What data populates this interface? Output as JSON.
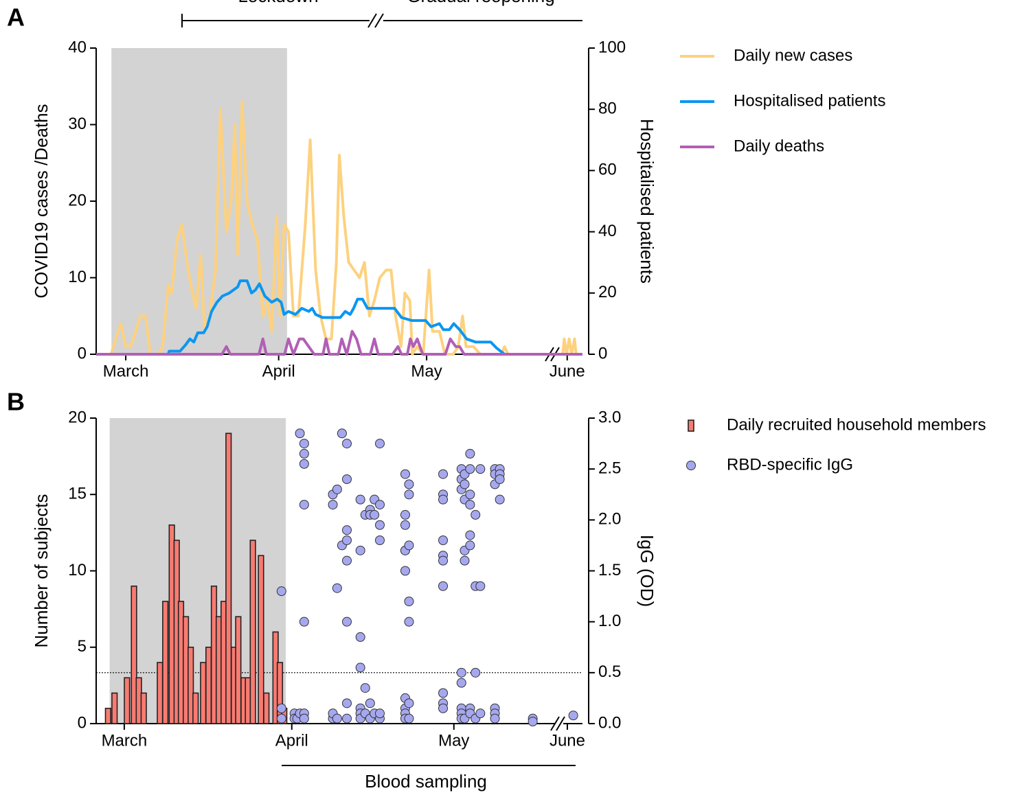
{
  "chart_data": [
    {
      "type": "line",
      "panel": "A",
      "annotations": [
        "Lockdown",
        "Gradual reopening"
      ],
      "y_label": "COVID19 cases /Deaths",
      "y2_label": "Hospitalised patients",
      "xlim": [
        -6,
        92.6
      ],
      "xticks": [
        {
          "value": 0,
          "label": "March"
        },
        {
          "value": 31,
          "label": "April"
        },
        {
          "value": 61,
          "label": "May"
        },
        {
          "value": 89.5,
          "label": "June"
        }
      ],
      "ylim": [
        0,
        40
      ],
      "yticks": [
        0,
        10,
        20,
        30,
        40
      ],
      "y2lim": [
        0,
        100
      ],
      "y2ticks": [
        0,
        20,
        40,
        60,
        80,
        100
      ],
      "shade_x": [
        -2.9,
        32.7
      ],
      "shade_color": "#d3d3d3",
      "series": [
        {
          "name": "Daily new cases",
          "color": "#fdd17e",
          "axis": "y",
          "x": [
            -6,
            -3,
            -1,
            0,
            1,
            3,
            4,
            5,
            6.5,
            7.5,
            8.6,
            9.3,
            10.4,
            11.4,
            12.4,
            13.5,
            14.3,
            15.2,
            16,
            17,
            18.2,
            19.2,
            20.4,
            21.4,
            22.1,
            22.7,
            23.6,
            24.6,
            25.6,
            26.7,
            27.8,
            28.8,
            29.6,
            30.6,
            31.3,
            32.1,
            33,
            34,
            35,
            36.4,
            37.4,
            38.5,
            39.5,
            40.6,
            41.7,
            42.7,
            43.3,
            44.2,
            45.2,
            46.3,
            47.4,
            48.4,
            49.4,
            50.4,
            51.5,
            52.8,
            53.8,
            54.7,
            55.8,
            56.6,
            57.6,
            58.1,
            59.1,
            60.3,
            61.5,
            62.2,
            63.6,
            64.7,
            66.4,
            67.4,
            68.3,
            69,
            70.5,
            71.9,
            76.2,
            76.8,
            77.5,
            null,
            88.6,
            88.9,
            89.4,
            89.9,
            90.4,
            91,
            91.3
          ],
          "values": [
            0,
            0,
            4,
            1,
            1,
            5,
            5,
            0,
            0,
            1,
            9,
            8,
            15,
            17,
            12,
            8,
            6,
            13,
            3,
            5,
            11,
            32,
            16,
            20,
            30,
            13,
            33,
            20,
            17,
            15,
            5,
            7,
            3,
            18,
            5,
            17,
            16,
            5,
            5,
            17,
            28,
            11,
            5,
            2,
            2,
            12,
            26,
            18,
            12,
            11,
            10,
            12,
            5,
            7,
            10,
            11,
            11,
            5,
            1,
            8,
            7,
            0,
            1,
            0,
            11,
            3,
            3,
            0,
            0,
            1,
            5,
            1,
            1,
            0,
            0,
            1,
            0,
            null,
            0,
            2,
            0,
            2,
            0,
            2,
            0
          ]
        },
        {
          "name": "Hospitalised patients",
          "color": "#0b96f1",
          "axis": "y2",
          "x": [
            -6,
            8.6,
            8.8,
            11,
            12.1,
            13,
            13.8,
            14.6,
            15.8,
            16.5,
            17.4,
            18.5,
            19.6,
            21,
            22.7,
            23.2,
            24.6,
            25.5,
            26.3,
            27.1,
            28.2,
            29.6,
            30.7,
            31.5,
            32.1,
            33,
            34.4,
            35.7,
            37.1,
            37.8,
            38.5,
            39.9,
            43.5,
            44.5,
            45.5,
            46.2,
            47,
            48,
            49,
            54.5,
            55.9,
            58,
            60.8,
            61.9,
            63.6,
            64.4,
            65.6,
            66.5,
            67.7,
            69.1,
            70.9,
            74,
            75.2,
            76.8,
            92.6
          ],
          "values": [
            0,
            0,
            1,
            1,
            3,
            5,
            4,
            7,
            7,
            9,
            14,
            17,
            19,
            20,
            22,
            24,
            24,
            20,
            21,
            23,
            19,
            17,
            18,
            17,
            13,
            14,
            13,
            15,
            14,
            15,
            13,
            12,
            12,
            14,
            13,
            15,
            18,
            18,
            15,
            15,
            12,
            11,
            11,
            9,
            10,
            8,
            8,
            10,
            8,
            5,
            4,
            4,
            2,
            0,
            0
          ]
        },
        {
          "name": "Daily deaths",
          "color": "#b15fb5",
          "axis": "y",
          "x": [
            -6,
            19.5,
            20.4,
            21.2,
            27,
            27.8,
            28.5,
            32.2,
            33,
            34,
            35.2,
            36,
            37.1,
            38.2,
            40,
            40.6,
            41.3,
            43.1,
            43.8,
            44.8,
            45.9,
            46.8,
            47.7,
            49.6,
            50.4,
            51.2,
            54.1,
            55.2,
            55.9,
            57.1,
            57.7,
            58.3,
            59.1,
            60.2,
            64.8,
            65.8,
            66.9,
            67.7,
            68.6,
            76,
            92.6
          ],
          "values": [
            0,
            0,
            1,
            0,
            0,
            2,
            0,
            0,
            2,
            0,
            2,
            2,
            1,
            0,
            0,
            2,
            0,
            0,
            2,
            0,
            3,
            2,
            0,
            0,
            2,
            0,
            0,
            1,
            0,
            0,
            2,
            1,
            2,
            0,
            0,
            2,
            1,
            1,
            0,
            0,
            0
          ]
        }
      ]
    },
    {
      "type": "bar",
      "panel": "B",
      "annotations": [
        "Blood sampling"
      ],
      "y_label": "Number of subjects",
      "y2_label": "IgG (OD)",
      "xlim": [
        -5.2,
        84.8
      ],
      "xticks": [
        {
          "value": 0,
          "label": "March"
        },
        {
          "value": 31,
          "label": "April"
        },
        {
          "value": 61,
          "label": "May"
        },
        {
          "value": 82,
          "label": "June"
        }
      ],
      "ylim": [
        0,
        20
      ],
      "yticks": [
        0,
        5,
        10,
        15,
        20
      ],
      "y2lim": [
        0,
        3
      ],
      "y2ticks": [
        {
          "value": 0,
          "label": "0.0"
        },
        {
          "value": 0.5,
          "label": "0.5"
        },
        {
          "value": 1,
          "label": "1.0"
        },
        {
          "value": 1.5,
          "label": "1.5"
        },
        {
          "value": 2,
          "label": "2.0"
        },
        {
          "value": 2.5,
          "label": "2.5"
        },
        {
          "value": 3,
          "label": "3.0"
        }
      ],
      "threshold": 0.5,
      "shade_x": [
        -2.7,
        29.9
      ],
      "shade_color": "#d3d3d3",
      "series": [
        {
          "name": "Daily recruited household members",
          "type": "bar",
          "color": "#f87b72",
          "axis": "y",
          "x": [
            -3,
            -1.8,
            0.5,
            1.8,
            2.7,
            3.6,
            6.6,
            7.6,
            8.8,
            9.7,
            10.5,
            11.4,
            12.3,
            13.2,
            14.6,
            15.6,
            16.6,
            17.5,
            18.4,
            19.3,
            20.3,
            21.1,
            22.1,
            22.9,
            23.8,
            25.3,
            26.3,
            28,
            28.8,
            29.6
          ],
          "values": [
            1,
            2,
            3,
            9,
            3,
            2,
            4,
            8,
            13,
            12,
            8,
            7,
            5,
            2,
            4,
            5,
            9,
            7,
            8,
            19,
            5,
            7,
            3,
            3,
            12,
            11,
            2,
            6,
            4,
            1
          ]
        },
        {
          "name": "RBD-specific IgG",
          "type": "scatter",
          "color": "#a6a8ef",
          "axis": "y2",
          "x": [
            29.1,
            29.1,
            29.1,
            31.5,
            31.5,
            32,
            32.5,
            32.5,
            33.3,
            33.3,
            33.3,
            33.3,
            33.3,
            33.3,
            33.3,
            38.6,
            38.6,
            38.6,
            38.6,
            39.4,
            39.4,
            39.4,
            40.3,
            40.3,
            41.2,
            41.2,
            41.2,
            41.2,
            41.2,
            41.2,
            41.2,
            41.2,
            43.7,
            43.7,
            43.7,
            43.7,
            43.7,
            43.7,
            43.7,
            44.6,
            44.6,
            44.6,
            45.5,
            45.5,
            45.5,
            45.5,
            46.3,
            46.3,
            46.3,
            47.3,
            47.3,
            47.3,
            47.3,
            47.3,
            47.3,
            52,
            52,
            52,
            52,
            52,
            52,
            52,
            52,
            52,
            52,
            52.7,
            52.7,
            52.7,
            52.7,
            52.7,
            52.7,
            52.7,
            59,
            59,
            59,
            59,
            59,
            59,
            59,
            59,
            59,
            59,
            62.4,
            62.4,
            62.4,
            62.4,
            62.4,
            62.4,
            62.4,
            62.4,
            63,
            63,
            63,
            63,
            63,
            63,
            64,
            64,
            64,
            64,
            64,
            64,
            64,
            64,
            65,
            65,
            65,
            65,
            65.9,
            65.9,
            65.9,
            68.6,
            68.6,
            68.6,
            68.6,
            68.6,
            68.6,
            69.5,
            69.5,
            69.5,
            69.5,
            75.6,
            75.6,
            83.1
          ],
          "values": [
            1.3,
            0.05,
            0.15,
            0.1,
            0.05,
            0.05,
            2.85,
            0.1,
            2.75,
            2.65,
            2.55,
            2.15,
            1.0,
            0.1,
            0.05,
            2.15,
            2.25,
            0.05,
            0.1,
            2.3,
            1.33,
            0.05,
            2.85,
            1.75,
            2.75,
            2.4,
            1.9,
            1.8,
            1.6,
            1.0,
            0.2,
            0.05,
            2.2,
            1.7,
            0.85,
            0.55,
            0.15,
            0.1,
            0.05,
            2.05,
            0.35,
            0.1,
            2.1,
            2.05,
            0.05,
            0.2,
            2.2,
            2.05,
            0.1,
            2.75,
            2.15,
            1.95,
            1.8,
            0.05,
            0.1,
            2.45,
            2.05,
            1.95,
            1.7,
            1.7,
            1.5,
            0.25,
            0.15,
            0.1,
            0.05,
            2.35,
            2.25,
            1.75,
            1.2,
            1.0,
            0.2,
            0.05,
            2.45,
            2.25,
            2.2,
            1.8,
            1.65,
            1.6,
            1.35,
            0.3,
            0.2,
            0.15,
            2.5,
            2.4,
            2.3,
            0.5,
            0.4,
            0.15,
            0.1,
            0.05,
            2.45,
            2.35,
            2.2,
            1.7,
            1.6,
            0.05,
            2.65,
            2.5,
            2.25,
            2.15,
            1.85,
            1.75,
            0.15,
            0.1,
            2.05,
            1.35,
            0.5,
            0.05,
            2.5,
            1.35,
            0.1,
            2.5,
            2.45,
            2.35,
            0.15,
            0.1,
            0.05,
            2.5,
            2.45,
            2.4,
            2.2,
            0.05,
            0.02,
            0.08
          ]
        }
      ]
    }
  ]
}
